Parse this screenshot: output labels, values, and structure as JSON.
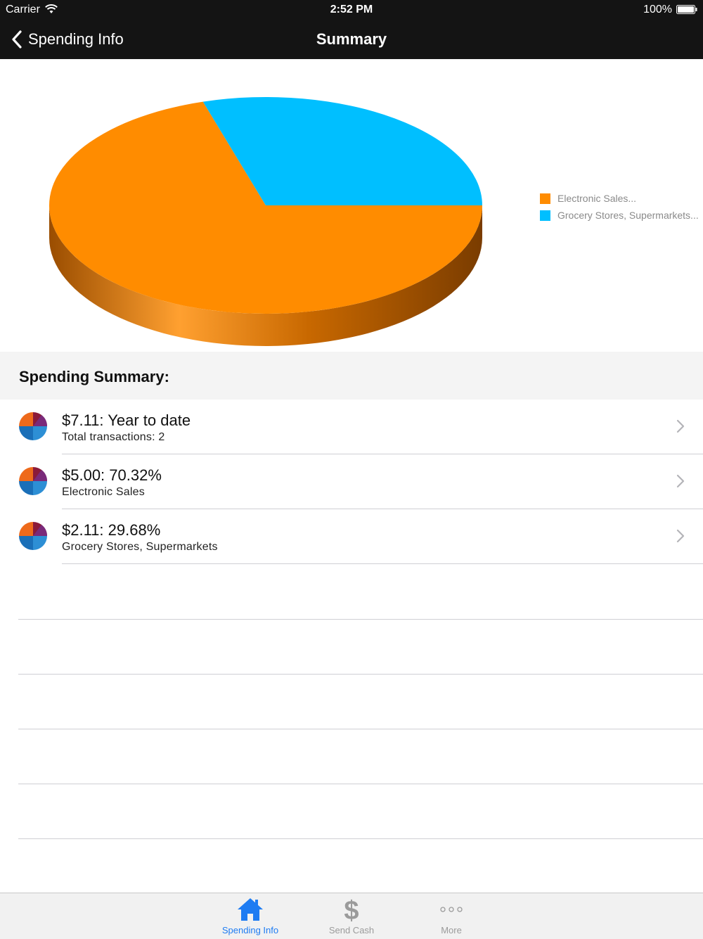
{
  "status_bar": {
    "carrier": "Carrier",
    "time": "2:52 PM",
    "battery": "100%"
  },
  "nav": {
    "back_label": "Spending Info",
    "title": "Summary"
  },
  "chart_data": {
    "type": "pie",
    "categories": [
      "Electronic Sales...",
      "Grocery Stores, Supermarkets..."
    ],
    "values": [
      70.32,
      29.68
    ],
    "colors": [
      "#ff8c00",
      "#00bfff"
    ],
    "legend_position": "right"
  },
  "section": {
    "title": "Spending Summary:"
  },
  "rows": [
    {
      "title": "$7.11: Year to date",
      "subtitle": "Total transactions: 2"
    },
    {
      "title": "$5.00: 70.32%",
      "subtitle": "Electronic Sales"
    },
    {
      "title": "$2.11: 29.68%",
      "subtitle": "Grocery Stores, Supermarkets"
    }
  ],
  "tabs": [
    {
      "label": "Spending Info",
      "icon": "home-icon",
      "active": true
    },
    {
      "label": "Send Cash",
      "icon": "dollar-icon",
      "active": false
    },
    {
      "label": "More",
      "icon": "more-dots-icon",
      "active": false
    }
  ]
}
